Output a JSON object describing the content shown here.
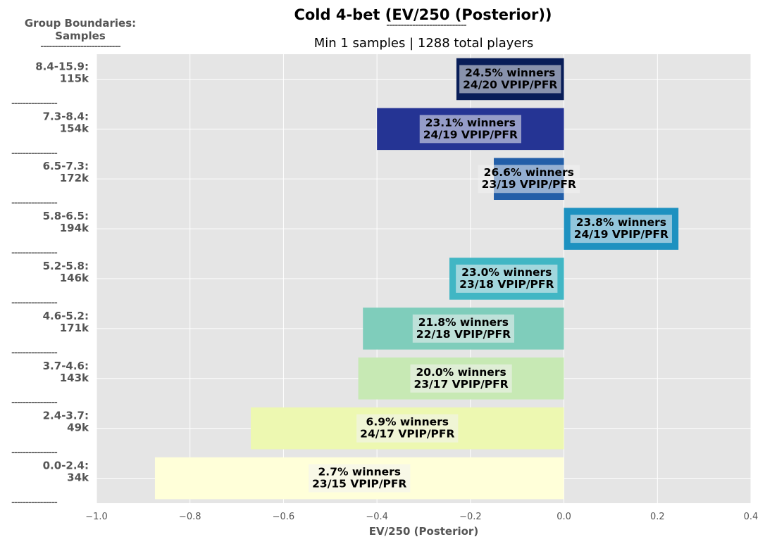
{
  "header": {
    "title": "Cold 4-bet (EV/250 (Posterior))",
    "title_rule": "----------------------------",
    "subtitle": "Min 1 samples | 1288 total players"
  },
  "side_header": {
    "title_line1": "Group Boundaries:",
    "title_line2": "Samples",
    "rule": "----------------------------"
  },
  "separator_text": "----------------",
  "chart_data": {
    "type": "bar",
    "orientation": "horizontal",
    "xlabel": "EV/250 (Posterior)",
    "xlim": [
      -1.0,
      0.4
    ],
    "xticks": [
      -1.0,
      -0.8,
      -0.6,
      -0.4,
      -0.2,
      0.0,
      0.2,
      0.4
    ],
    "xtick_labels": [
      "−1.0",
      "−0.8",
      "−0.6",
      "−0.4",
      "−0.2",
      "0.0",
      "0.2",
      "0.4"
    ],
    "grid": true,
    "background": "#e5e5e5",
    "groups": [
      {
        "range": "8.4-15.9:",
        "samples": "115k",
        "value": -0.23,
        "winners": "24.5% winners",
        "vpip_pfr": "24/20 VPIP/PFR",
        "color": "#081d58"
      },
      {
        "range": "7.3-8.4:",
        "samples": "154k",
        "value": -0.4,
        "winners": "23.1% winners",
        "vpip_pfr": "24/19 VPIP/PFR",
        "color": "#253494"
      },
      {
        "range": "6.5-7.3:",
        "samples": "172k",
        "value": -0.15,
        "winners": "26.6% winners",
        "vpip_pfr": "23/19 VPIP/PFR",
        "color": "#225ea8"
      },
      {
        "range": "5.8-6.5:",
        "samples": "194k",
        "value": 0.245,
        "winners": "23.8% winners",
        "vpip_pfr": "24/19 VPIP/PFR",
        "color": "#1d91c0"
      },
      {
        "range": "5.2-5.8:",
        "samples": "146k",
        "value": -0.245,
        "winners": "23.0% winners",
        "vpip_pfr": "23/18 VPIP/PFR",
        "color": "#41b6c4"
      },
      {
        "range": "4.6-5.2:",
        "samples": "171k",
        "value": -0.43,
        "winners": "21.8% winners",
        "vpip_pfr": "22/18 VPIP/PFR",
        "color": "#7fcdbb"
      },
      {
        "range": "3.7-4.6:",
        "samples": "143k",
        "value": -0.44,
        "winners": "20.0% winners",
        "vpip_pfr": "23/17 VPIP/PFR",
        "color": "#c7e9b4"
      },
      {
        "range": "2.4-3.7:",
        "samples": "49k",
        "value": -0.67,
        "winners": "6.9% winners",
        "vpip_pfr": "24/17 VPIP/PFR",
        "color": "#edf8b1"
      },
      {
        "range": "0.0-2.4:",
        "samples": "34k",
        "value": -0.875,
        "winners": "2.7% winners",
        "vpip_pfr": "23/15 VPIP/PFR",
        "color": "#ffffd9"
      }
    ]
  }
}
